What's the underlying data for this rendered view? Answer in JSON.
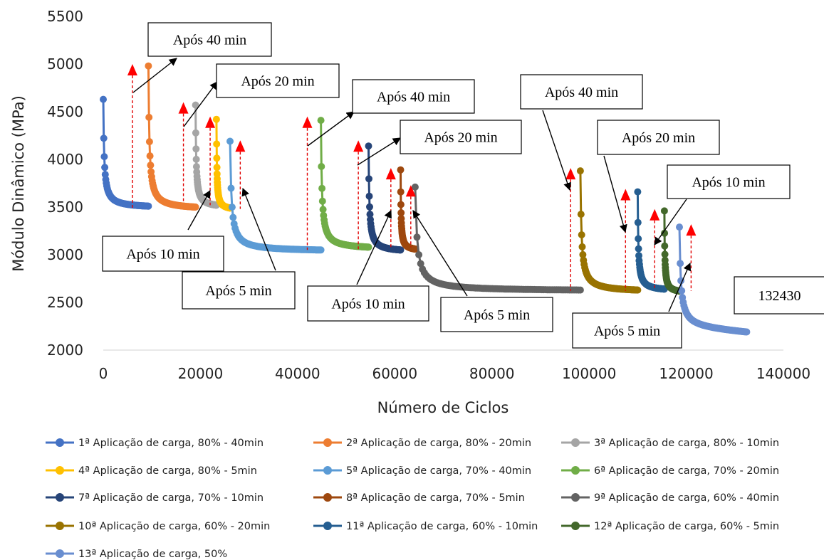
{
  "chart_data": {
    "type": "scatter",
    "title": "",
    "xlabel": "Número de Ciclos",
    "ylabel": "Módulo Dinâmico (MPa)",
    "xlim": [
      0,
      140000
    ],
    "ylim": [
      2000,
      5500
    ],
    "xticks": [
      "0",
      "20000",
      "40000",
      "60000",
      "80000",
      "100000",
      "120000",
      "140000"
    ],
    "yticks": [
      "2000",
      "2500",
      "3000",
      "3500",
      "4000",
      "4500",
      "5000",
      "5500"
    ],
    "grid": false,
    "legend_position": "bottom",
    "series": [
      {
        "name": "1ª Aplicação de carga, 80% - 40min",
        "color": "#4472C4",
        "x0": 0,
        "x1": 9300,
        "y_start": 4630,
        "y_end": 3510,
        "k": 0.02
      },
      {
        "name": "2ª Aplicação de carga, 80% - 20min",
        "color": "#ED7D31",
        "x0": 9300,
        "x1": 19000,
        "y_start": 4980,
        "y_end": 3500,
        "k": 0.02
      },
      {
        "name": "3ª Aplicação de carga, 80% - 10min",
        "color": "#A5A5A5",
        "x0": 19000,
        "x1": 23300,
        "y_start": 4570,
        "y_end": 3520,
        "k": 0.03
      },
      {
        "name": "4ª Aplicação de carga, 80% - 5min",
        "color": "#FFC000",
        "x0": 23300,
        "x1": 26100,
        "y_start": 4420,
        "y_end": 3490,
        "k": 0.03
      },
      {
        "name": "5ª Aplicação de carga, 70% - 40min",
        "color": "#5B9BD5",
        "x0": 26100,
        "x1": 44800,
        "y_start": 4190,
        "y_end": 3050,
        "k": 0.015
      },
      {
        "name": "6ª Aplicação de carga, 70% - 20min",
        "color": "#70AD47",
        "x0": 44800,
        "x1": 54600,
        "y_start": 4410,
        "y_end": 3080,
        "k": 0.02
      },
      {
        "name": "7ª Aplicação de carga, 70% - 10min",
        "color": "#264478",
        "x0": 54600,
        "x1": 61200,
        "y_start": 4140,
        "y_end": 3050,
        "k": 0.025
      },
      {
        "name": "8ª Aplicação de carga, 70% - 5min",
        "color": "#9E480E",
        "x0": 61200,
        "x1": 64200,
        "y_start": 3890,
        "y_end": 3060,
        "k": 0.03
      },
      {
        "name": "9ª Aplicação de carga, 60% - 40min",
        "color": "#636363",
        "x0": 64200,
        "x1": 98200,
        "y_start": 3710,
        "y_end": 2630,
        "k": 0.012
      },
      {
        "name": "10ª Aplicação de carga, 60% - 20min",
        "color": "#997300",
        "x0": 98200,
        "x1": 110000,
        "y_start": 3880,
        "y_end": 2630,
        "k": 0.02
      },
      {
        "name": "11ª Aplicação de carga, 60% - 10min",
        "color": "#255E91",
        "x0": 110000,
        "x1": 115500,
        "y_start": 3660,
        "y_end": 2640,
        "k": 0.025
      },
      {
        "name": "12ª Aplicação de carga, 60% - 5min",
        "color": "#43682B",
        "x0": 115500,
        "x1": 118600,
        "y_start": 3460,
        "y_end": 2620,
        "k": 0.03
      },
      {
        "name": "13ª Aplicação de carga, 50%",
        "color": "#698ED0",
        "x0": 118600,
        "x1": 132430,
        "y_start": 3290,
        "y_end": 2190,
        "k": 0.02,
        "tail_slope": 0.05
      }
    ],
    "red_markers": [
      {
        "x": 6000,
        "y_top": 4970
      },
      {
        "x": 16500,
        "y_top": 4570
      },
      {
        "x": 22000,
        "y_top": 4420
      },
      {
        "x": 28200,
        "y_top": 4170
      },
      {
        "x": 42000,
        "y_top": 4420
      },
      {
        "x": 52500,
        "y_top": 4170
      },
      {
        "x": 59200,
        "y_top": 3880
      },
      {
        "x": 63300,
        "y_top": 3700
      },
      {
        "x": 96200,
        "y_top": 3880
      },
      {
        "x": 107500,
        "y_top": 3660
      },
      {
        "x": 113500,
        "y_top": 3450
      },
      {
        "x": 121000,
        "y_top": 3290
      }
    ],
    "annotations": [
      {
        "text": "Após 40 min"
      },
      {
        "text": "Após 20 min"
      },
      {
        "text": "Após 10 min"
      },
      {
        "text": "Após 5 min"
      },
      {
        "text": "Após 40 min"
      },
      {
        "text": "Após 20 min"
      },
      {
        "text": "Após 10 min"
      },
      {
        "text": "Após 5 min"
      },
      {
        "text": "Após 40 min"
      },
      {
        "text": "Após 20 min"
      },
      {
        "text": "Após 10 min"
      },
      {
        "text": "Após 5 min"
      },
      {
        "text": "132430"
      }
    ]
  }
}
